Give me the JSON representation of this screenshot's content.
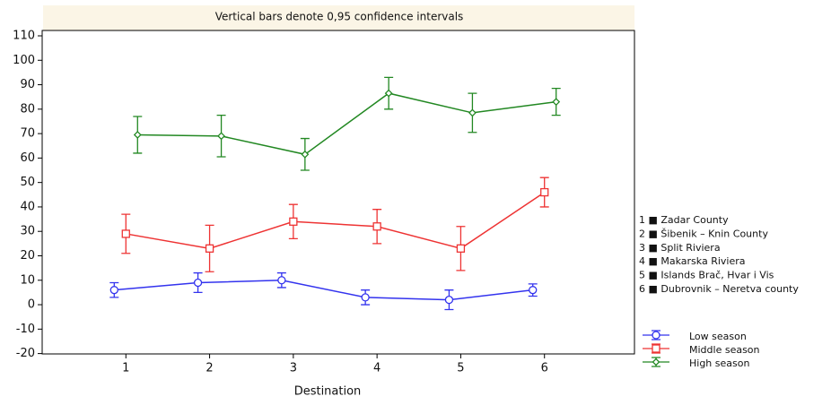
{
  "chart_data": {
    "type": "line",
    "title": "Vertical bars denote 0,95 confidence intervals",
    "x_label": "Destination",
    "x": [
      1,
      2,
      3,
      4,
      5,
      6
    ],
    "xlim": [
      0,
      7
    ],
    "xticks": [
      1,
      2,
      3,
      4,
      5,
      6
    ],
    "ylim": [
      -20,
      110
    ],
    "yticks": [
      -20,
      -10,
      0,
      10,
      20,
      30,
      40,
      50,
      60,
      70,
      80,
      90,
      100,
      110
    ],
    "series": [
      {
        "name": "Low season",
        "color": "#3333ee",
        "marker": "circle",
        "values": [
          6,
          9,
          10,
          3,
          2,
          6
        ],
        "errors": [
          3,
          4,
          3,
          3,
          4,
          2.5
        ]
      },
      {
        "name": "Middle season",
        "color": "#ee3333",
        "marker": "square",
        "values": [
          29,
          23,
          34,
          32,
          23,
          46
        ],
        "errors": [
          8,
          9.5,
          7,
          7,
          9,
          6
        ]
      },
      {
        "name": "High season",
        "color": "#228822",
        "marker": "diamond",
        "values": [
          69.5,
          69,
          61.5,
          86.5,
          78.5,
          83
        ],
        "errors": [
          7.5,
          8.5,
          6.5,
          6.5,
          8,
          5.5
        ]
      }
    ],
    "annotations": [
      "1 ■ Zadar County",
      "2 ■ Šibenik – Knin County",
      "3 ■ Split Riviera",
      "4 ■ Makarska Riviera",
      "5 ■ Islands Brač, Hvar i Vis",
      "6 ■ Dubrovnik – Neretva county"
    ]
  }
}
